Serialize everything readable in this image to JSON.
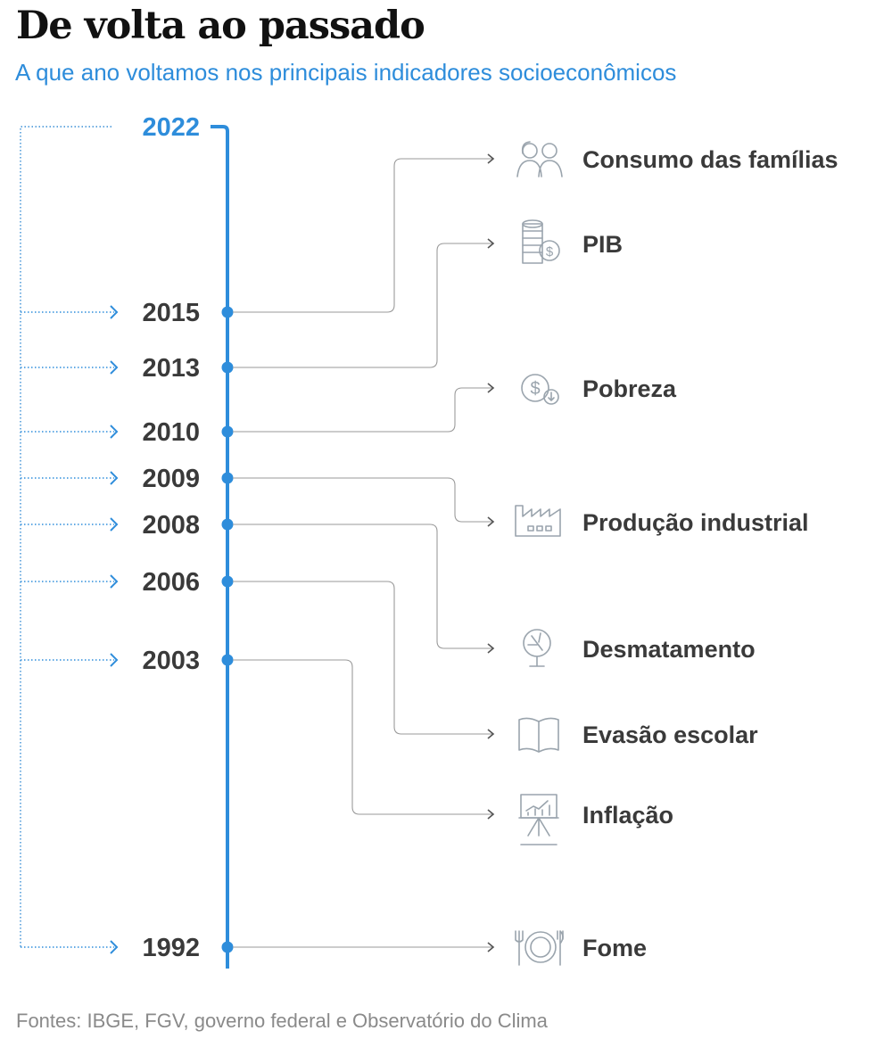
{
  "title": "De volta ao passado",
  "subtitle": "A que ano voltamos nos principais indicadores socioeconômicos",
  "source": "Fontes: IBGE, FGV, governo federal e Observatório do Clima",
  "current_year": "2022",
  "colors": {
    "accent": "#2e8ddb",
    "text": "#3a3a3a",
    "connector": "#9a9a9a",
    "icon": "#9aa4ad"
  },
  "timeline": [
    {
      "year": "2015",
      "indicators": [
        {
          "label": "Consumo das famílias",
          "icon": "people-icon"
        }
      ]
    },
    {
      "year": "2013",
      "indicators": [
        {
          "label": "PIB",
          "icon": "coins-icon"
        }
      ]
    },
    {
      "year": "2010",
      "indicators": [
        {
          "label": "Pobreza",
          "icon": "coin-down-icon"
        }
      ]
    },
    {
      "year": "2009",
      "indicators": [
        {
          "label": "Produção industrial",
          "icon": "factory-icon"
        }
      ]
    },
    {
      "year": "2008",
      "indicators": [
        {
          "label": "Desmatamento",
          "icon": "tree-cut-icon"
        }
      ]
    },
    {
      "year": "2006",
      "indicators": [
        {
          "label": "Evasão escolar",
          "icon": "book-icon"
        }
      ]
    },
    {
      "year": "2003",
      "indicators": [
        {
          "label": "Inflação",
          "icon": "chart-board-icon"
        }
      ]
    },
    {
      "year": "1992",
      "indicators": [
        {
          "label": "Fome",
          "icon": "plate-icon"
        }
      ]
    }
  ]
}
